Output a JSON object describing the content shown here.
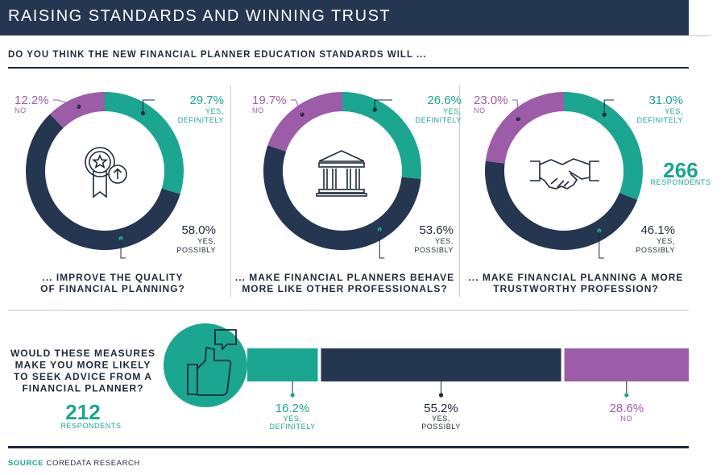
{
  "header": {
    "title": "RAISING STANDARDS AND WINNING TRUST"
  },
  "question": "DO YOU THINK THE NEW FINANCIAL PLANNER EDUCATION STANDARDS WILL ...",
  "colors": {
    "teal": "#1aa690",
    "navy": "#253650",
    "purple": "#9c5ca8",
    "dark": "#1e2a3a"
  },
  "chart_data": [
    {
      "type": "pie",
      "title": "... IMPROVE THE QUALITY OF FINANCIAL PLANNING?",
      "caption_lines": [
        "... IMPROVE THE QUALITY",
        "OF FINANCIAL PLANNING?"
      ],
      "icon": "award-badge-icon",
      "categories": [
        "YES, DEFINITELY",
        "YES, POSSIBLY",
        "NO"
      ],
      "values": [
        29.7,
        58.0,
        12.2
      ],
      "value_labels": [
        "29.7%",
        "58.0%",
        "12.2%"
      ],
      "label_lines": [
        [
          "YES,",
          "DEFINITELY"
        ],
        [
          "YES,",
          "POSSIBLY"
        ],
        [
          "NO"
        ]
      ]
    },
    {
      "type": "pie",
      "title": "... MAKE FINANCIAL PLANNERS BEHAVE MORE LIKE OTHER PROFESSIONALS?",
      "caption_lines": [
        "... MAKE FINANCIAL PLANNERS BEHAVE",
        "MORE LIKE OTHER PROFESSIONALS?"
      ],
      "icon": "institution-building-icon",
      "categories": [
        "YES, DEFINITELY",
        "YES, POSSIBLY",
        "NO"
      ],
      "values": [
        26.6,
        53.6,
        19.7
      ],
      "value_labels": [
        "26.6%",
        "53.6%",
        "19.7%"
      ],
      "label_lines": [
        [
          "YES,",
          "DEFINITELY"
        ],
        [
          "YES,",
          "POSSIBLY"
        ],
        [
          "NO"
        ]
      ]
    },
    {
      "type": "pie",
      "title": "... MAKE FINANCIAL PLANNING A MORE TRUSTWORTHY PROFESSION?",
      "caption_lines": [
        "... MAKE FINANCIAL PLANNING A MORE",
        "TRUSTWORTHY PROFESSION?"
      ],
      "icon": "handshake-icon",
      "categories": [
        "YES, DEFINITELY",
        "YES, POSSIBLY",
        "NO"
      ],
      "values": [
        31.0,
        46.1,
        23.0
      ],
      "value_labels": [
        "31.0%",
        "46.1%",
        "23.0%"
      ],
      "label_lines": [
        [
          "YES,",
          "DEFINITELY"
        ],
        [
          "YES,",
          "POSSIBLY"
        ],
        [
          "NO"
        ]
      ],
      "respondents_number": "266",
      "respondents_label": "RESPONDENTS"
    },
    {
      "type": "bar",
      "orientation": "horizontal-stacked",
      "title": "WOULD THESE MEASURES MAKE YOU MORE LIKELY TO SEEK ADVICE FROM A FINANCIAL PLANNER?",
      "title_lines": [
        "WOULD THESE MEASURES",
        "MAKE YOU MORE LIKELY",
        "TO SEEK ADVICE FROM A",
        "FINANCIAL PLANNER?"
      ],
      "icon": "thumbs-up-icon",
      "categories": [
        "YES, DEFINITELY",
        "YES, POSSIBLY",
        "NO"
      ],
      "values": [
        16.2,
        55.2,
        28.6
      ],
      "value_labels": [
        "16.2%",
        "55.2%",
        "28.6%"
      ],
      "label_lines": [
        [
          "YES,",
          "DEFINITELY"
        ],
        [
          "YES,",
          "POSSIBLY"
        ],
        [
          "NO"
        ]
      ],
      "respondents_number": "212",
      "respondents_label": "RESPONDENTS"
    }
  ],
  "footer": {
    "source_key": "SOURCE",
    "source_value": "COREDATA RESEARCH"
  }
}
